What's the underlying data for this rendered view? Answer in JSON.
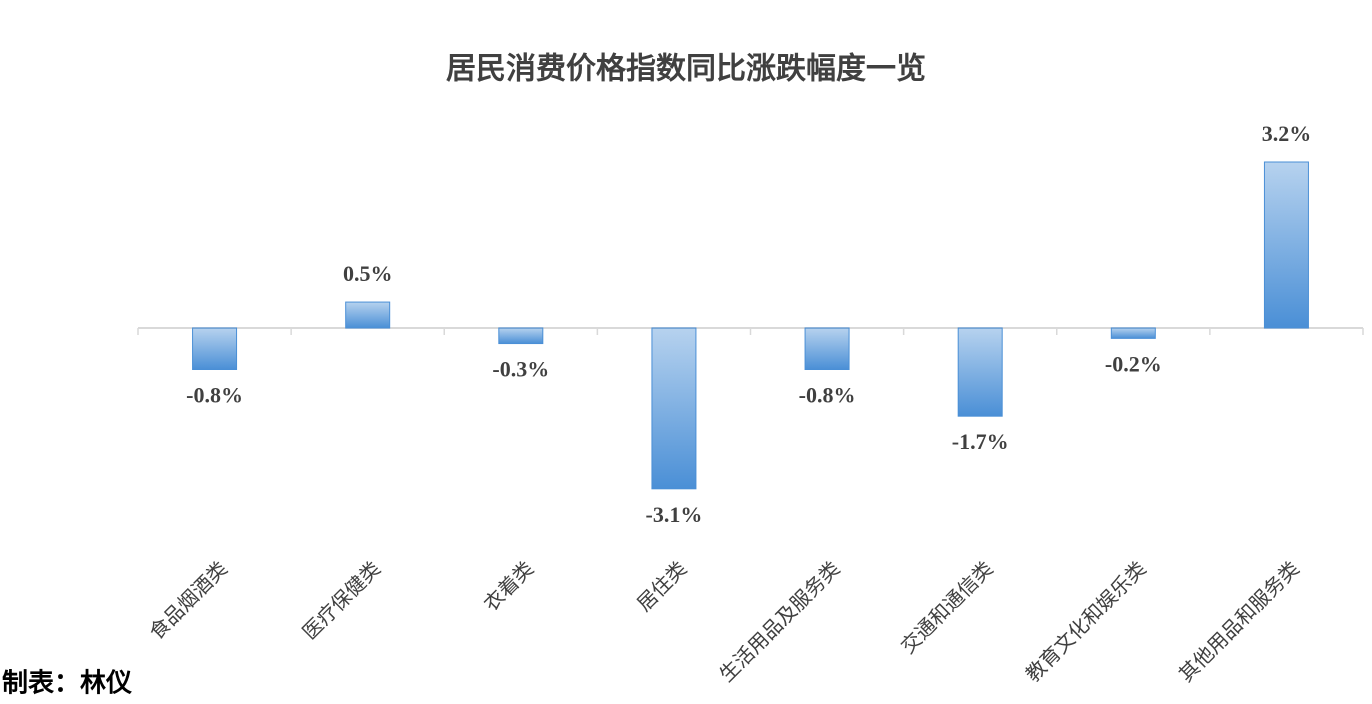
{
  "chart_data": {
    "type": "bar",
    "title": "居民消费价格指数同比涨跌幅度一览",
    "categories": [
      "食品烟酒类",
      "医疗保健类",
      "衣着类",
      "居住类",
      "生活用品及服务类",
      "交通和通信类",
      "教育文化和娱乐类",
      "其他用品和服务类"
    ],
    "values": [
      -0.8,
      0.5,
      -0.3,
      -3.1,
      -0.8,
      -1.7,
      -0.2,
      3.2
    ],
    "value_labels": [
      "-0.8%",
      "0.5%",
      "-0.3%",
      "-3.1%",
      "-0.8%",
      "-1.7%",
      "-0.2%",
      "3.2%"
    ],
    "color": "#4a8fd6",
    "ylim": [
      -4,
      4
    ],
    "footer": "制表：林仪"
  }
}
